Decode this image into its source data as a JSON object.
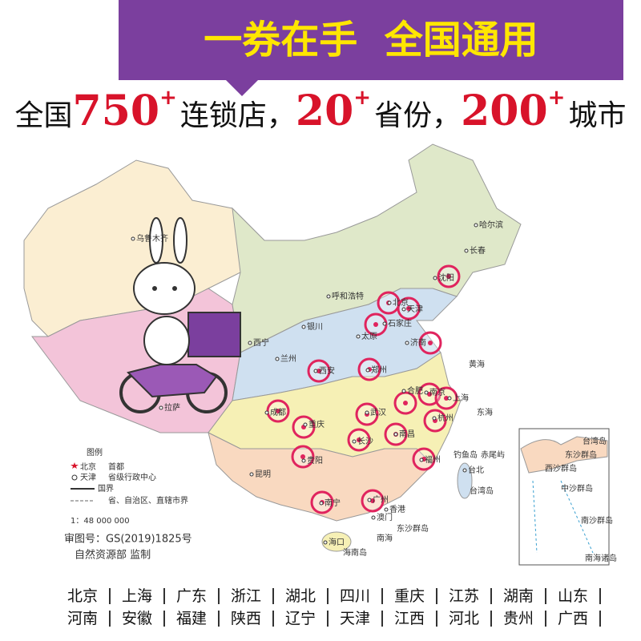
{
  "banner": {
    "title": "一券在手  全国通用"
  },
  "headline": {
    "lead": "全国",
    "items": [
      {
        "number": "750",
        "plus": "+",
        "unit": "连锁店，"
      },
      {
        "number": "20",
        "plus": "+",
        "unit": "省份，"
      },
      {
        "number": "200",
        "plus": "+",
        "unit": "城市"
      }
    ]
  },
  "map": {
    "cities": [
      "乌鲁木齐",
      "哈尔滨",
      "长春",
      "沈阳",
      "呼和浩特",
      "北京",
      "天津",
      "石家庄",
      "太原",
      "银川",
      "西宁",
      "兰州",
      "济南",
      "郑州",
      "西安",
      "合肥",
      "南京",
      "上海",
      "成都",
      "重庆",
      "武汉",
      "杭州",
      "长沙",
      "南昌",
      "贵阳",
      "昆明",
      "福州",
      "台北",
      "南宁",
      "广州",
      "香港",
      "澳门",
      "海口",
      "拉萨"
    ],
    "places": [
      "黄海",
      "东海",
      "南海",
      "钓鱼岛",
      "赤尾屿",
      "台湾岛",
      "东沙群岛",
      "海南岛"
    ],
    "legend": {
      "title": "图例",
      "capital": "北京",
      "capital_note": "首都",
      "provincial": "天津",
      "provincial_note": "省级行政中心",
      "border": "国界",
      "province_border": "省、自治区、直辖市界",
      "scale": "1：48 000 000"
    },
    "inset": {
      "title": "南海诸岛",
      "labels": [
        "台湾岛",
        "东沙群岛",
        "西沙群岛",
        "中沙群岛",
        "南沙群岛"
      ]
    },
    "approval": "审图号：GS(2019)1825号",
    "supervisor": "自然资源部  监制"
  },
  "provinces": [
    [
      "北京",
      "上海",
      "广东",
      "浙江",
      "湖北",
      "四川",
      "重庆",
      "江苏",
      "湖南",
      "山东"
    ],
    [
      "河南",
      "安徽",
      "福建",
      "陕西",
      "辽宁",
      "天津",
      "江西",
      "河北",
      "贵州",
      "广西"
    ]
  ]
}
